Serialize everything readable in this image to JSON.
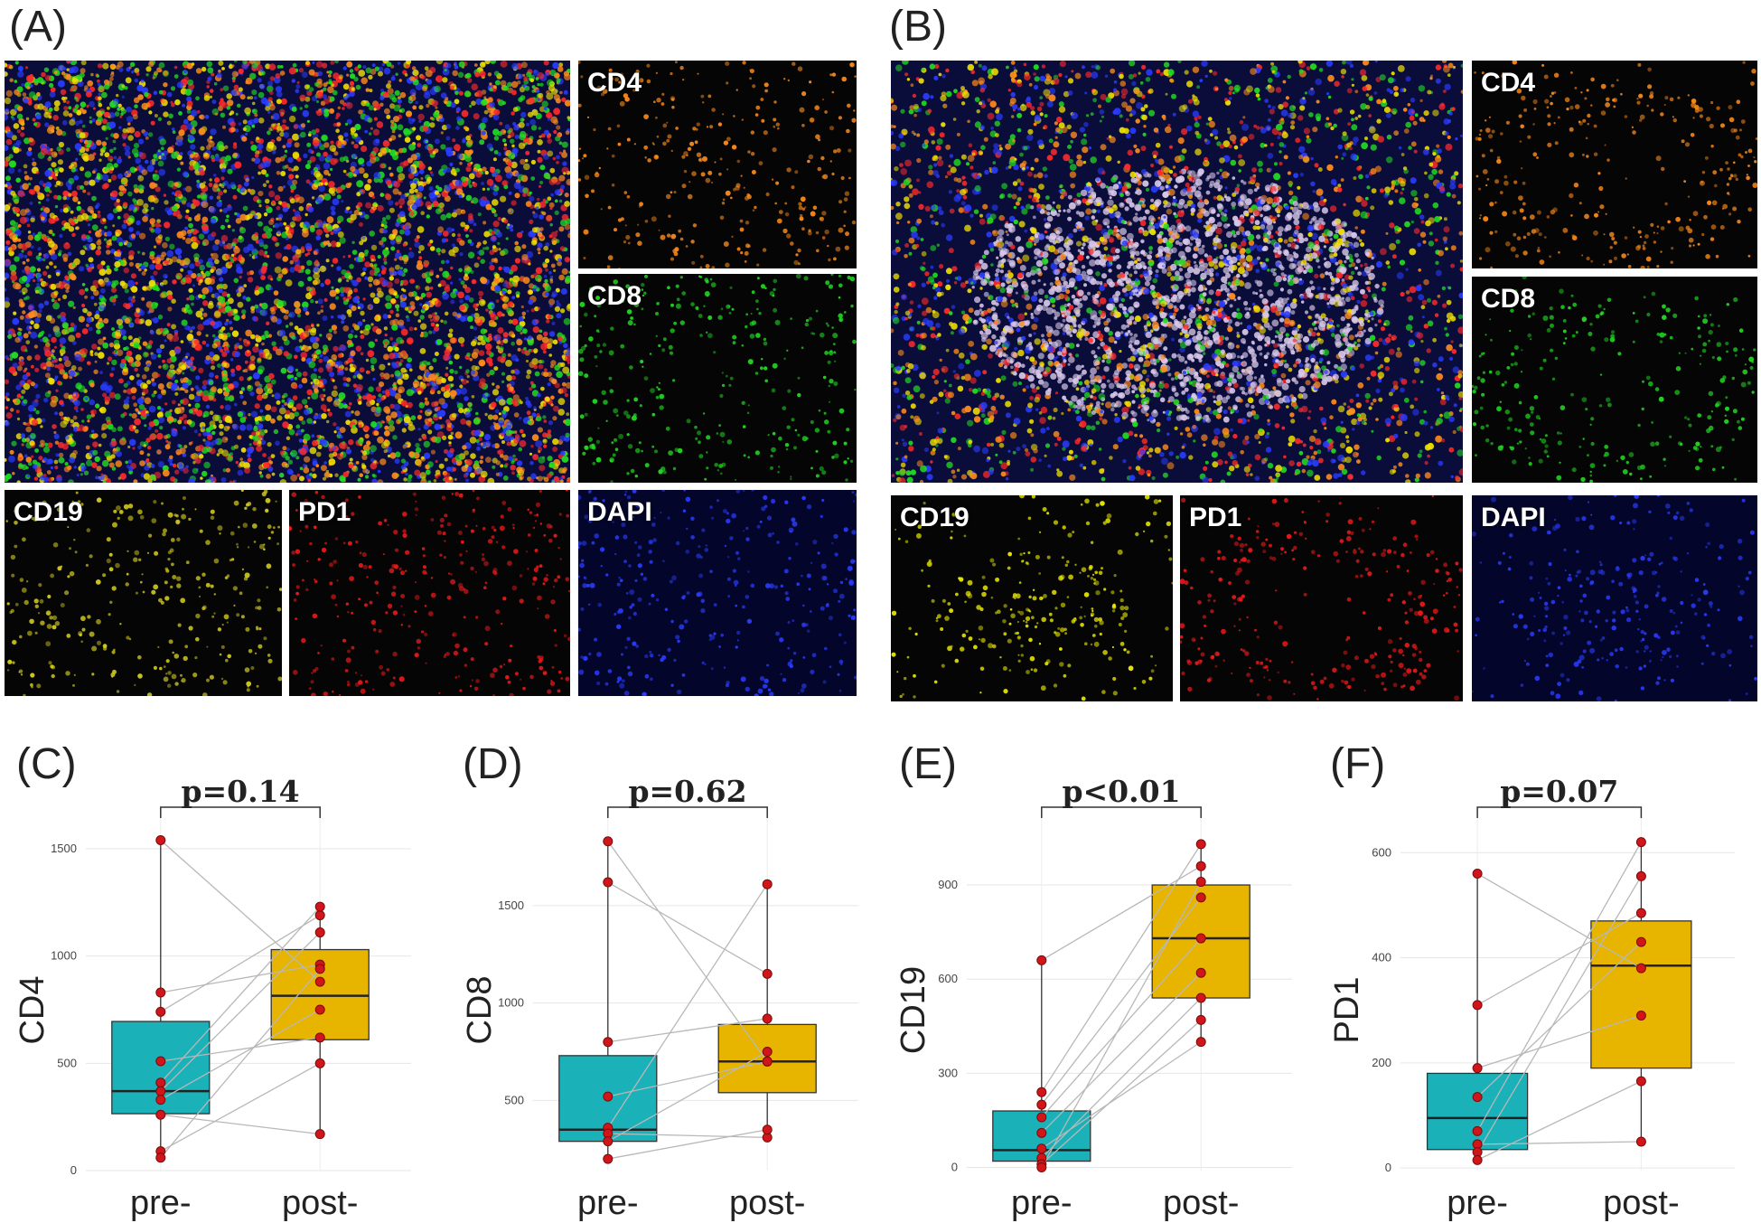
{
  "panels_top": [
    {
      "letter": "(A)",
      "composite_channels": [
        "orange",
        "green",
        "yellow",
        "red",
        "blue"
      ],
      "composite_pattern": "diffuse",
      "tiles": [
        {
          "label": "CD4",
          "color": "#ff8c1a",
          "pattern": "diffuse"
        },
        {
          "label": "CD8",
          "color": "#22dd22",
          "pattern": "diffuse"
        },
        {
          "label": "CD19",
          "color": "#d8d020",
          "pattern": "diffuse"
        },
        {
          "label": "PD1",
          "color": "#ee1a1a",
          "pattern": "diffuse"
        },
        {
          "label": "DAPI",
          "color": "#2a3cff",
          "pattern": "diffuse"
        }
      ]
    },
    {
      "letter": "(B)",
      "composite_channels": [
        "orange",
        "green",
        "yellow",
        "red",
        "blue"
      ],
      "composite_pattern": "follicle",
      "tiles": [
        {
          "label": "CD4",
          "color": "#ff8c1a",
          "pattern": "ring"
        },
        {
          "label": "CD8",
          "color": "#22dd22",
          "pattern": "ring"
        },
        {
          "label": "CD19",
          "color": "#f0f000",
          "pattern": "follicle"
        },
        {
          "label": "PD1",
          "color": "#ee1a1a",
          "pattern": "ring"
        },
        {
          "label": "DAPI",
          "color": "#2a3cff",
          "pattern": "follicle"
        }
      ]
    }
  ],
  "chart_data": [
    {
      "letter": "(C)",
      "type": "box",
      "ylabel": "CD4",
      "categories": [
        "pre-",
        "post-"
      ],
      "pvalue": "p=0.14",
      "ylim": [
        0,
        1580
      ],
      "yticks": [
        0,
        500,
        1000,
        1500
      ],
      "box_pre": {
        "q1": 265,
        "median": 370,
        "q3": 695,
        "whisker_low": 60,
        "whisker_high": 1540
      },
      "box_post": {
        "q1": 610,
        "median": 815,
        "q3": 1030,
        "whisker_low": 170,
        "whisker_high": 1230
      },
      "pre_values": [
        1540,
        830,
        740,
        510,
        410,
        370,
        330,
        260,
        90,
        60
      ],
      "post_values": [
        880,
        960,
        1190,
        620,
        1230,
        1110,
        750,
        170,
        500,
        940
      ],
      "colors": {
        "pre": "#1ab2b8",
        "post": "#e7b400",
        "point": "#d0161a",
        "line": "#b8b8b8"
      }
    },
    {
      "letter": "(D)",
      "type": "box",
      "ylabel": "CD8",
      "categories": [
        "pre-",
        "post-"
      ],
      "pvalue": "p=0.62",
      "ylim": [
        140,
        1880
      ],
      "yticks": [
        500,
        1000,
        1500
      ],
      "box_pre": {
        "q1": 290,
        "median": 350,
        "q3": 730,
        "whisker_low": 200,
        "whisker_high": 1830
      },
      "box_post": {
        "q1": 540,
        "median": 700,
        "q3": 890,
        "whisker_low": 310,
        "whisker_high": 1610
      },
      "pre_values": [
        1830,
        1620,
        800,
        520,
        360,
        330,
        290,
        200
      ],
      "post_values": [
        700,
        1150,
        920,
        700,
        1610,
        310,
        750,
        350
      ],
      "colors": {
        "pre": "#1ab2b8",
        "post": "#e7b400",
        "point": "#d0161a",
        "line": "#b8b8b8"
      }
    },
    {
      "letter": "(E)",
      "type": "box",
      "ylabel": "CD19",
      "categories": [
        "pre-",
        "post-"
      ],
      "pvalue": "p<0.01",
      "ylim": [
        -10,
        1070
      ],
      "yticks": [
        0,
        300,
        600,
        900
      ],
      "box_pre": {
        "q1": 20,
        "median": 55,
        "q3": 180,
        "whisker_low": 0,
        "whisker_high": 660
      },
      "box_post": {
        "q1": 540,
        "median": 730,
        "q3": 900,
        "whisker_low": 400,
        "whisker_high": 1030
      },
      "pre_values": [
        660,
        240,
        200,
        160,
        110,
        60,
        30,
        10,
        0
      ],
      "post_values": [
        960,
        1030,
        860,
        730,
        620,
        400,
        540,
        470,
        910
      ],
      "colors": {
        "pre": "#1ab2b8",
        "post": "#e7b400",
        "point": "#d0161a",
        "line": "#b8b8b8"
      }
    },
    {
      "letter": "(F)",
      "type": "box",
      "ylabel": "PD1",
      "categories": [
        "pre-",
        "post-"
      ],
      "pvalue": "p=0.07",
      "ylim": [
        -5,
        640
      ],
      "yticks": [
        0,
        200,
        400,
        600
      ],
      "box_pre": {
        "q1": 35,
        "median": 95,
        "q3": 180,
        "whisker_low": 10,
        "whisker_high": 560
      },
      "box_post": {
        "q1": 190,
        "median": 385,
        "q3": 470,
        "whisker_low": 45,
        "whisker_high": 620
      },
      "pre_values": [
        560,
        310,
        190,
        135,
        70,
        45,
        30,
        15
      ],
      "post_values": [
        380,
        485,
        290,
        430,
        620,
        50,
        555,
        165
      ],
      "colors": {
        "pre": "#1ab2b8",
        "post": "#e7b400",
        "point": "#d0161a",
        "line": "#b8b8b8"
      }
    }
  ]
}
